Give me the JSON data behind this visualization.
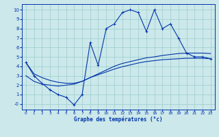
{
  "bg_color": "#cce8ea",
  "line_color": "#0033aa",
  "grid_color": "#99cccc",
  "xlim": [
    -0.5,
    23.5
  ],
  "ylim": [
    -0.6,
    10.6
  ],
  "xticks": [
    0,
    1,
    2,
    3,
    4,
    5,
    6,
    7,
    8,
    9,
    10,
    11,
    12,
    13,
    14,
    15,
    16,
    17,
    18,
    19,
    20,
    21,
    22,
    23
  ],
  "yticks": [
    0,
    1,
    2,
    3,
    4,
    5,
    6,
    7,
    8,
    9,
    10
  ],
  "ytick_labels": [
    "-0",
    "1",
    "2",
    "3",
    "4",
    "5",
    "6",
    "7",
    "8",
    "9",
    "10"
  ],
  "xlabel": "Graphe des températures (°c)",
  "main_x": [
    0,
    1,
    2,
    3,
    4,
    5,
    6,
    7,
    8,
    9,
    10,
    11,
    12,
    13,
    14,
    15,
    16,
    17,
    18,
    19,
    20,
    21,
    22,
    23
  ],
  "main_y": [
    4.4,
    3.0,
    2.2,
    1.5,
    1.0,
    0.7,
    -0.1,
    1.0,
    6.5,
    4.1,
    8.0,
    8.5,
    9.7,
    10.0,
    9.7,
    7.7,
    10.0,
    8.0,
    8.5,
    7.0,
    5.4,
    5.0,
    5.0,
    4.8
  ],
  "smooth1_x": [
    0,
    1,
    2,
    3,
    4,
    5,
    6,
    7,
    8,
    9,
    10,
    11,
    12,
    13,
    14,
    15,
    16,
    17,
    18,
    19,
    20,
    21,
    22,
    23
  ],
  "smooth1_y": [
    4.4,
    3.2,
    2.8,
    2.5,
    2.3,
    2.2,
    2.2,
    2.4,
    2.8,
    3.2,
    3.6,
    4.0,
    4.3,
    4.5,
    4.7,
    4.9,
    5.0,
    5.15,
    5.25,
    5.35,
    5.4,
    5.4,
    5.4,
    5.35
  ],
  "smooth2_x": [
    0,
    1,
    2,
    3,
    4,
    5,
    6,
    7,
    8,
    9,
    10,
    11,
    12,
    13,
    14,
    15,
    16,
    17,
    18,
    19,
    20,
    21,
    22,
    23
  ],
  "smooth2_y": [
    3.0,
    2.4,
    2.1,
    2.0,
    1.9,
    2.0,
    2.1,
    2.4,
    2.8,
    3.1,
    3.4,
    3.7,
    3.95,
    4.15,
    4.35,
    4.5,
    4.6,
    4.7,
    4.75,
    4.8,
    4.85,
    4.85,
    4.85,
    4.8
  ]
}
